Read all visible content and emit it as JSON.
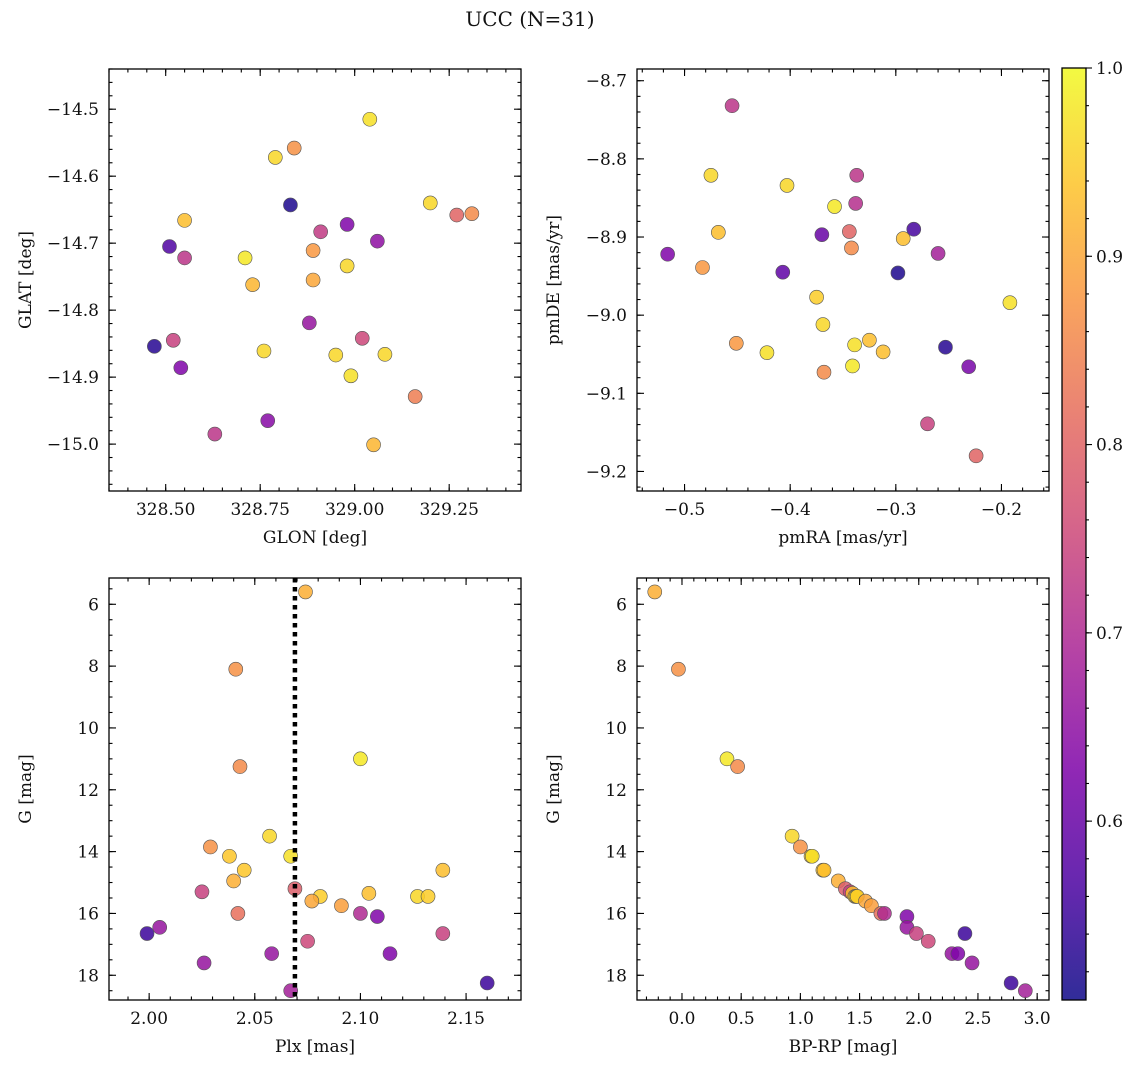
{
  "suptitle": "UCC (N=31)",
  "colorbar": {
    "colormap": "plasma",
    "range": [
      0.505,
      1.0
    ],
    "ticks": [
      0.6,
      0.7,
      0.8,
      0.9,
      1.0
    ],
    "tick_labels": [
      "0.6",
      "0.7",
      "0.8",
      "0.9",
      "1.0"
    ]
  },
  "chart_data": [
    {
      "type": "scatter",
      "panel": "top-left",
      "xlabel": "GLON [deg]",
      "ylabel": "GLAT [deg]",
      "xlim": [
        328.35,
        329.44
      ],
      "ylim": [
        -15.07,
        -14.44
      ],
      "xticks": [
        328.5,
        328.75,
        329.0,
        329.25
      ],
      "xtick_labels": [
        "328.50",
        "328.75",
        "329.00",
        "329.25"
      ],
      "yticks": [
        -15.0,
        -14.9,
        -14.8,
        -14.7,
        -14.6,
        -14.5
      ],
      "ytick_labels": [
        "−15.0",
        "−14.9",
        "−14.8",
        "−14.7",
        "−14.6",
        "−14.5"
      ],
      "points": [
        {
          "x": 329.04,
          "y": -14.515,
          "c": 0.97
        },
        {
          "x": 328.84,
          "y": -14.558,
          "c": 0.87
        },
        {
          "x": 328.79,
          "y": -14.572,
          "c": 0.96
        },
        {
          "x": 328.83,
          "y": -14.643,
          "c": 0.52
        },
        {
          "x": 329.2,
          "y": -14.64,
          "c": 0.96
        },
        {
          "x": 329.27,
          "y": -14.658,
          "c": 0.8
        },
        {
          "x": 329.31,
          "y": -14.656,
          "c": 0.86
        },
        {
          "x": 328.55,
          "y": -14.666,
          "c": 0.93
        },
        {
          "x": 328.98,
          "y": -14.672,
          "c": 0.63
        },
        {
          "x": 328.91,
          "y": -14.683,
          "c": 0.73
        },
        {
          "x": 329.06,
          "y": -14.697,
          "c": 0.65
        },
        {
          "x": 328.51,
          "y": -14.705,
          "c": 0.57
        },
        {
          "x": 328.89,
          "y": -14.711,
          "c": 0.88
        },
        {
          "x": 328.55,
          "y": -14.722,
          "c": 0.72
        },
        {
          "x": 328.71,
          "y": -14.722,
          "c": 0.98
        },
        {
          "x": 328.98,
          "y": -14.734,
          "c": 0.96
        },
        {
          "x": 328.89,
          "y": -14.755,
          "c": 0.9
        },
        {
          "x": 328.73,
          "y": -14.762,
          "c": 0.92
        },
        {
          "x": 328.88,
          "y": -14.819,
          "c": 0.66
        },
        {
          "x": 329.02,
          "y": -14.842,
          "c": 0.75
        },
        {
          "x": 328.52,
          "y": -14.845,
          "c": 0.74
        },
        {
          "x": 328.47,
          "y": -14.854,
          "c": 0.53
        },
        {
          "x": 328.76,
          "y": -14.861,
          "c": 0.96
        },
        {
          "x": 329.08,
          "y": -14.866,
          "c": 0.96
        },
        {
          "x": 328.95,
          "y": -14.867,
          "c": 0.96
        },
        {
          "x": 328.54,
          "y": -14.886,
          "c": 0.63
        },
        {
          "x": 328.99,
          "y": -14.898,
          "c": 0.97
        },
        {
          "x": 329.16,
          "y": -14.929,
          "c": 0.84
        },
        {
          "x": 328.77,
          "y": -14.965,
          "c": 0.64
        },
        {
          "x": 328.63,
          "y": -14.985,
          "c": 0.72
        },
        {
          "x": 329.05,
          "y": -15.001,
          "c": 0.92
        }
      ]
    },
    {
      "type": "scatter",
      "panel": "top-right",
      "xlabel": "pmRA [mas/yr]",
      "ylabel": "pmDE [mas/yr]",
      "xlim": [
        -0.545,
        -0.155
      ],
      "ylim": [
        -9.225,
        -8.685
      ],
      "xticks": [
        -0.5,
        -0.4,
        -0.3,
        -0.2
      ],
      "xtick_labels": [
        "−0.5",
        "−0.4",
        "−0.3",
        "−0.2"
      ],
      "yticks": [
        -9.2,
        -9.1,
        -9.0,
        -8.9,
        -8.8,
        -8.7
      ],
      "ytick_labels": [
        "−9.2",
        "−9.1",
        "−9.0",
        "−8.9",
        "−8.8",
        "−8.7"
      ],
      "points": [
        {
          "x": -0.455,
          "y": -8.732,
          "c": 0.72
        },
        {
          "x": -0.475,
          "y": -8.821,
          "c": 0.96
        },
        {
          "x": -0.337,
          "y": -8.821,
          "c": 0.72
        },
        {
          "x": -0.403,
          "y": -8.834,
          "c": 0.96
        },
        {
          "x": -0.338,
          "y": -8.857,
          "c": 0.71
        },
        {
          "x": -0.358,
          "y": -8.861,
          "c": 0.98
        },
        {
          "x": -0.283,
          "y": -8.89,
          "c": 0.56
        },
        {
          "x": -0.344,
          "y": -8.893,
          "c": 0.8
        },
        {
          "x": -0.468,
          "y": -8.894,
          "c": 0.93
        },
        {
          "x": -0.37,
          "y": -8.897,
          "c": 0.6
        },
        {
          "x": -0.293,
          "y": -8.902,
          "c": 0.93
        },
        {
          "x": -0.342,
          "y": -8.914,
          "c": 0.86
        },
        {
          "x": -0.516,
          "y": -8.922,
          "c": 0.63
        },
        {
          "x": -0.26,
          "y": -8.921,
          "c": 0.68
        },
        {
          "x": -0.483,
          "y": -8.939,
          "c": 0.88
        },
        {
          "x": -0.407,
          "y": -8.945,
          "c": 0.59
        },
        {
          "x": -0.298,
          "y": -8.946,
          "c": 0.52
        },
        {
          "x": -0.192,
          "y": -8.984,
          "c": 0.97
        },
        {
          "x": -0.375,
          "y": -8.977,
          "c": 0.95
        },
        {
          "x": -0.369,
          "y": -9.012,
          "c": 0.96
        },
        {
          "x": -0.325,
          "y": -9.032,
          "c": 0.93
        },
        {
          "x": -0.339,
          "y": -9.038,
          "c": 0.97
        },
        {
          "x": -0.451,
          "y": -9.036,
          "c": 0.88
        },
        {
          "x": -0.253,
          "y": -9.041,
          "c": 0.53
        },
        {
          "x": -0.312,
          "y": -9.047,
          "c": 0.93
        },
        {
          "x": -0.422,
          "y": -9.048,
          "c": 0.97
        },
        {
          "x": -0.341,
          "y": -9.065,
          "c": 0.98
        },
        {
          "x": -0.231,
          "y": -9.066,
          "c": 0.62
        },
        {
          "x": -0.368,
          "y": -9.073,
          "c": 0.86
        },
        {
          "x": -0.27,
          "y": -9.139,
          "c": 0.74
        },
        {
          "x": -0.224,
          "y": -9.18,
          "c": 0.8
        }
      ]
    },
    {
      "type": "scatter",
      "panel": "bottom-left",
      "xlabel": "Plx [mas]",
      "ylabel": "G [mag]",
      "xlim": [
        1.981,
        2.176
      ],
      "ylim": [
        18.8,
        5.15
      ],
      "y_inverted": true,
      "reference_line_x": 2.069,
      "xticks": [
        2.0,
        2.05,
        2.1,
        2.15
      ],
      "xtick_labels": [
        "2.00",
        "2.05",
        "2.10",
        "2.15"
      ],
      "yticks": [
        6,
        8,
        10,
        12,
        14,
        16,
        18
      ],
      "ytick_labels": [
        "6",
        "8",
        "10",
        "12",
        "14",
        "16",
        "18"
      ],
      "points": [
        {
          "x": 2.074,
          "y": 5.6,
          "c": 0.91
        },
        {
          "x": 2.041,
          "y": 8.1,
          "c": 0.87
        },
        {
          "x": 2.1,
          "y": 11.0,
          "c": 0.98
        },
        {
          "x": 2.043,
          "y": 11.25,
          "c": 0.86
        },
        {
          "x": 2.057,
          "y": 13.5,
          "c": 0.96
        },
        {
          "x": 2.029,
          "y": 13.85,
          "c": 0.87
        },
        {
          "x": 2.038,
          "y": 14.15,
          "c": 0.94
        },
        {
          "x": 2.067,
          "y": 14.15,
          "c": 0.97
        },
        {
          "x": 2.045,
          "y": 14.6,
          "c": 0.94
        },
        {
          "x": 2.139,
          "y": 14.6,
          "c": 0.93
        },
        {
          "x": 2.04,
          "y": 14.95,
          "c": 0.91
        },
        {
          "x": 2.069,
          "y": 15.2,
          "c": 0.79
        },
        {
          "x": 2.025,
          "y": 15.3,
          "c": 0.74
        },
        {
          "x": 2.104,
          "y": 15.35,
          "c": 0.93
        },
        {
          "x": 2.081,
          "y": 15.45,
          "c": 0.95
        },
        {
          "x": 2.127,
          "y": 15.45,
          "c": 0.96
        },
        {
          "x": 2.132,
          "y": 15.45,
          "c": 0.95
        },
        {
          "x": 2.077,
          "y": 15.6,
          "c": 0.9
        },
        {
          "x": 2.091,
          "y": 15.75,
          "c": 0.89
        },
        {
          "x": 2.042,
          "y": 16.0,
          "c": 0.82
        },
        {
          "x": 2.1,
          "y": 16.0,
          "c": 0.7
        },
        {
          "x": 2.108,
          "y": 16.1,
          "c": 0.63
        },
        {
          "x": 2.005,
          "y": 16.45,
          "c": 0.66
        },
        {
          "x": 1.999,
          "y": 16.65,
          "c": 0.55
        },
        {
          "x": 2.139,
          "y": 16.65,
          "c": 0.74
        },
        {
          "x": 2.075,
          "y": 16.9,
          "c": 0.75
        },
        {
          "x": 2.058,
          "y": 17.3,
          "c": 0.66
        },
        {
          "x": 2.114,
          "y": 17.3,
          "c": 0.63
        },
        {
          "x": 2.026,
          "y": 17.6,
          "c": 0.66
        },
        {
          "x": 2.16,
          "y": 18.25,
          "c": 0.55
        },
        {
          "x": 2.067,
          "y": 18.5,
          "c": 0.68
        }
      ]
    },
    {
      "type": "scatter",
      "panel": "bottom-right",
      "xlabel": "BP-RP [mag]",
      "ylabel": "G [mag]",
      "xlim": [
        -0.38,
        3.1
      ],
      "ylim": [
        18.8,
        5.15
      ],
      "y_inverted": true,
      "xticks": [
        0.0,
        0.5,
        1.0,
        1.5,
        2.0,
        2.5,
        3.0
      ],
      "xtick_labels": [
        "0.0",
        "0.5",
        "1.0",
        "1.5",
        "2.0",
        "2.5",
        "3.0"
      ],
      "yticks": [
        6,
        8,
        10,
        12,
        14,
        16,
        18
      ],
      "ytick_labels": [
        "6",
        "8",
        "10",
        "12",
        "14",
        "16",
        "18"
      ],
      "points": [
        {
          "x": -0.23,
          "y": 5.6,
          "c": 0.91
        },
        {
          "x": -0.03,
          "y": 8.1,
          "c": 0.87
        },
        {
          "x": 0.38,
          "y": 11.0,
          "c": 0.98
        },
        {
          "x": 0.47,
          "y": 11.25,
          "c": 0.86
        },
        {
          "x": 0.93,
          "y": 13.5,
          "c": 0.96
        },
        {
          "x": 1.0,
          "y": 13.85,
          "c": 0.87
        },
        {
          "x": 1.09,
          "y": 14.15,
          "c": 0.94
        },
        {
          "x": 1.1,
          "y": 14.15,
          "c": 0.97
        },
        {
          "x": 1.19,
          "y": 14.6,
          "c": 0.94
        },
        {
          "x": 1.2,
          "y": 14.6,
          "c": 0.93
        },
        {
          "x": 1.32,
          "y": 14.95,
          "c": 0.91
        },
        {
          "x": 1.38,
          "y": 15.2,
          "c": 0.79
        },
        {
          "x": 1.42,
          "y": 15.3,
          "c": 0.74
        },
        {
          "x": 1.44,
          "y": 15.35,
          "c": 0.93
        },
        {
          "x": 1.46,
          "y": 15.45,
          "c": 0.95
        },
        {
          "x": 1.47,
          "y": 15.45,
          "c": 0.96
        },
        {
          "x": 1.48,
          "y": 15.45,
          "c": 0.95
        },
        {
          "x": 1.55,
          "y": 15.6,
          "c": 0.9
        },
        {
          "x": 1.6,
          "y": 15.75,
          "c": 0.89
        },
        {
          "x": 1.68,
          "y": 16.0,
          "c": 0.82
        },
        {
          "x": 1.71,
          "y": 16.0,
          "c": 0.7
        },
        {
          "x": 1.9,
          "y": 16.1,
          "c": 0.63
        },
        {
          "x": 1.9,
          "y": 16.45,
          "c": 0.66
        },
        {
          "x": 2.39,
          "y": 16.65,
          "c": 0.55
        },
        {
          "x": 1.98,
          "y": 16.65,
          "c": 0.74
        },
        {
          "x": 2.08,
          "y": 16.9,
          "c": 0.75
        },
        {
          "x": 2.28,
          "y": 17.3,
          "c": 0.66
        },
        {
          "x": 2.33,
          "y": 17.3,
          "c": 0.63
        },
        {
          "x": 2.45,
          "y": 17.6,
          "c": 0.66
        },
        {
          "x": 2.78,
          "y": 18.25,
          "c": 0.55
        },
        {
          "x": 2.9,
          "y": 18.5,
          "c": 0.68
        }
      ]
    }
  ]
}
